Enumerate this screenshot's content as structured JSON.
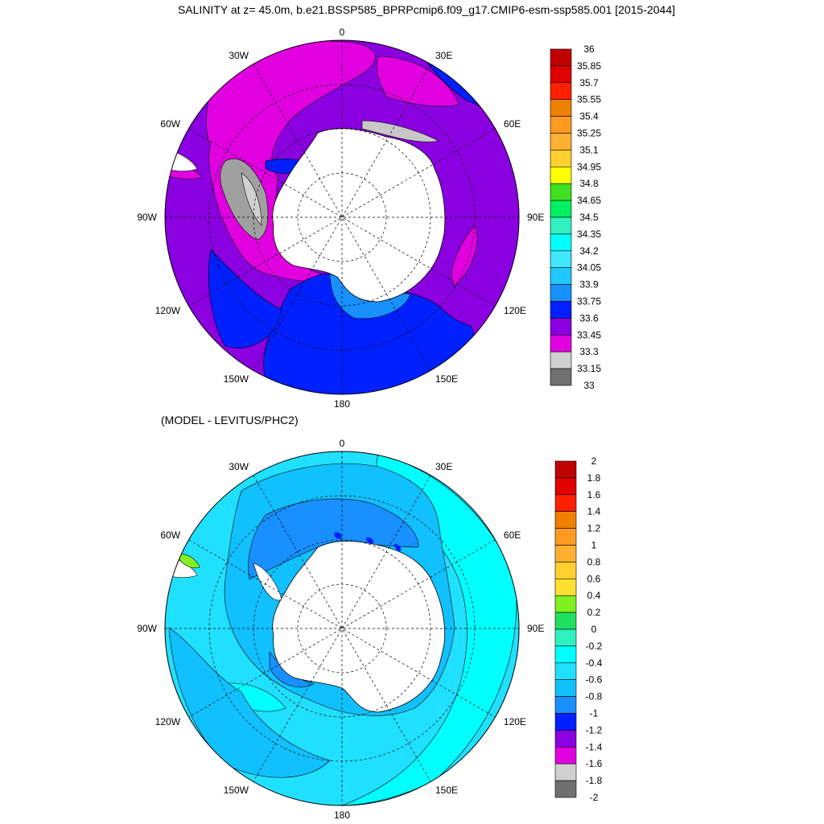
{
  "title": "SALINITY at z=  45.0m, b.e21.BSSP585_BPRPcmip6.f09_g17.CMIP6-esm-ssp585.001 [2015-2044]",
  "subtitle": "(MODEL - LEVITUS/PHC2)",
  "maps": [
    {
      "name": "salinity",
      "lon_labels": [
        "0",
        "30E",
        "60E",
        "90E",
        "120E",
        "150E",
        "180",
        "150W",
        "120W",
        "90W",
        "60W",
        "30W"
      ],
      "colorbar": {
        "labels": [
          "36",
          "35.85",
          "35.7",
          "35.55",
          "35.4",
          "35.25",
          "35.1",
          "34.95",
          "34.8",
          "34.65",
          "34.5",
          "34.35",
          "34.2",
          "34.05",
          "33.9",
          "33.75",
          "33.6",
          "33.45",
          "33.3",
          "33.15",
          "33"
        ],
        "colors": [
          "#c00000",
          "#e00000",
          "#ff2000",
          "#f08000",
          "#ff9a20",
          "#ffb030",
          "#ffd030",
          "#ffff00",
          "#40e020",
          "#00f060",
          "#30f0c0",
          "#00ffff",
          "#40e8ff",
          "#20c8ff",
          "#1890ff",
          "#0020ff",
          "#8a00e0",
          "#e000e0",
          "#d0d0d0",
          "#707070"
        ]
      },
      "regions": {
        "ocean": "#8a00e0",
        "fresh": "#0020ff",
        "salty": "#e000e0",
        "ice_shelf": "#d0d0d0",
        "land": "#ffffff"
      }
    },
    {
      "name": "difference",
      "lon_labels": [
        "0",
        "30E",
        "60E",
        "90E",
        "120E",
        "150E",
        "180",
        "150W",
        "120W",
        "90W",
        "60W",
        "30W"
      ],
      "colorbar": {
        "labels": [
          "2",
          "1.8",
          "1.6",
          "1.4",
          "1.2",
          "1",
          "0.8",
          "0.6",
          "0.4",
          "0.2",
          "0",
          "-0.2",
          "-0.4",
          "-0.6",
          "-0.8",
          "-1",
          "-1.2",
          "-1.4",
          "-1.6",
          "-1.8",
          "-2"
        ],
        "colors": [
          "#c00000",
          "#e00000",
          "#ff2000",
          "#f08000",
          "#ff9a20",
          "#ffb030",
          "#ffd030",
          "#ffe030",
          "#80f020",
          "#20e060",
          "#30f0c0",
          "#00ffff",
          "#20e0ff",
          "#10c0ff",
          "#1890ff",
          "#0020ff",
          "#8a00e0",
          "#e000e0",
          "#d0d0d0",
          "#707070"
        ]
      },
      "regions": {
        "ocean": "#00ffff",
        "mid": "#20e0ff",
        "low": "#10c0ff",
        "lower": "#1890ff",
        "land": "#ffffff"
      }
    }
  ]
}
